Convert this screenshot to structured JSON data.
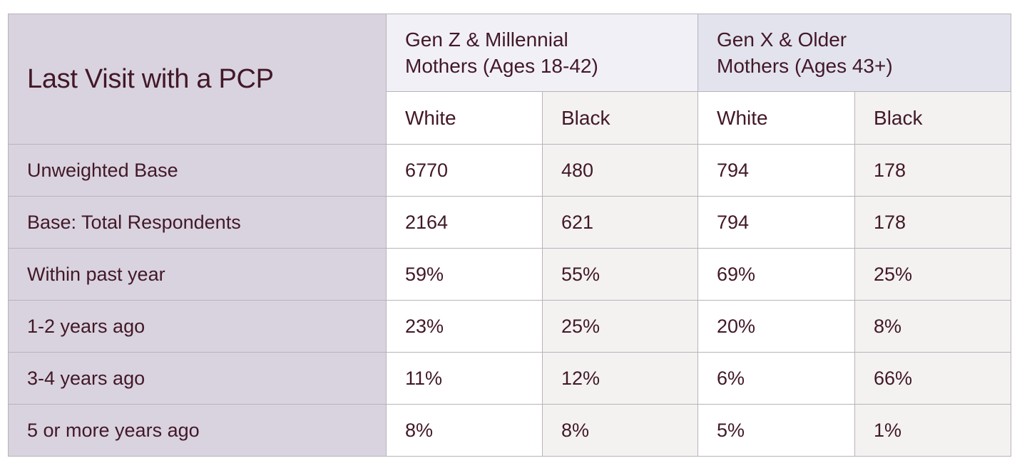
{
  "table": {
    "title": "Last Visit with a PCP",
    "groups": [
      {
        "label_line1": "Gen Z & Millennial",
        "label_line2": "Mothers (Ages 18-42)"
      },
      {
        "label_line1": "Gen X & Older",
        "label_line2": "Mothers (Ages 43+)"
      }
    ],
    "subheaders": [
      "White",
      "Black",
      "White",
      "Black"
    ],
    "rows": [
      {
        "label": "Unweighted Base",
        "values": [
          "6770",
          "480",
          "794",
          "178"
        ]
      },
      {
        "label": "Base: Total Respondents",
        "values": [
          "2164",
          "621",
          "794",
          "178"
        ]
      },
      {
        "label": "Within past year",
        "values": [
          "59%",
          "55%",
          "69%",
          "25%"
        ]
      },
      {
        "label": "1-2 years ago",
        "values": [
          "23%",
          "25%",
          "20%",
          "8%"
        ]
      },
      {
        "label": "3-4 years ago",
        "values": [
          "11%",
          "12%",
          "6%",
          "66%"
        ]
      },
      {
        "label": "5 or more years ago",
        "values": [
          "8%",
          "8%",
          "5%",
          "1%"
        ]
      }
    ]
  },
  "colors": {
    "text": "#421828",
    "label_column_bg": "#d9d3df",
    "group_a_bg": "#f1f0f6",
    "group_b_bg": "#e3e3ee",
    "alt_column_bg": "#f3f2f1",
    "border": "#b9b3bb"
  }
}
